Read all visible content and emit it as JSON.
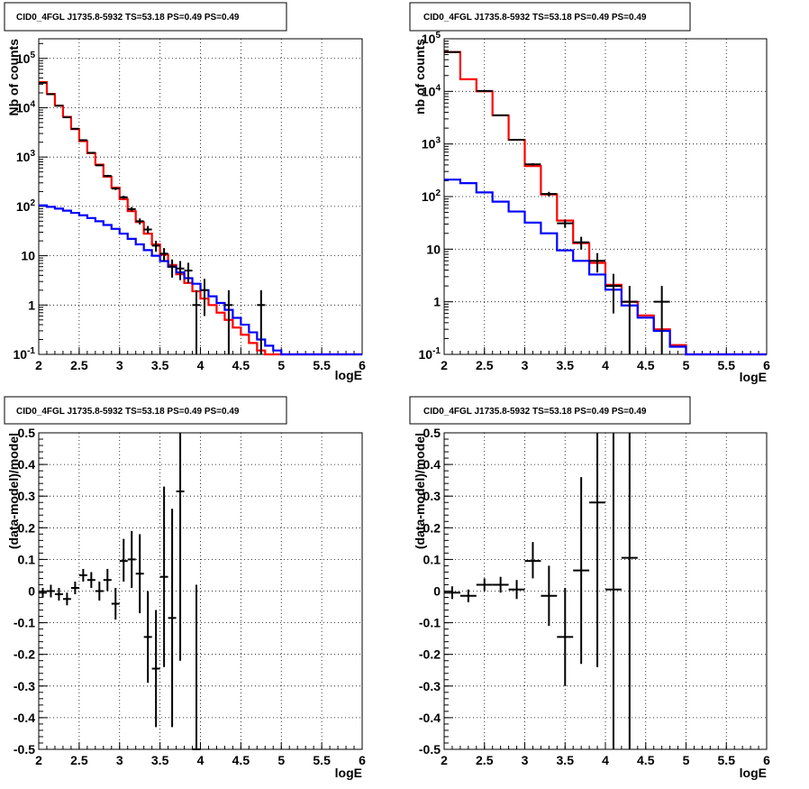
{
  "chart_data": [
    {
      "type": "line",
      "title": "CID0_4FGL J1735.8-5932 TS=53.18 PS=0.49 PS=0.49",
      "xlabel": "logE",
      "ylabel": "Nb of counts",
      "xlim": [
        2,
        6
      ],
      "ylim": [
        0.1,
        250000
      ],
      "log_y": true,
      "grid": true,
      "x_ticks": [
        "2",
        "2.5",
        "3",
        "3.5",
        "4",
        "4.5",
        "5",
        "5.5",
        "6"
      ],
      "y_ticks": [
        "10^-1",
        "1",
        "10",
        "10^2",
        "10^3",
        "10^4",
        "10^5"
      ],
      "bin_edges": [
        2.0,
        2.1,
        2.2,
        2.3,
        2.4,
        2.5,
        2.6,
        2.7,
        2.8,
        2.9,
        3.0,
        3.1,
        3.2,
        3.3,
        3.4,
        3.5,
        3.6,
        3.7,
        3.8,
        3.9,
        4.0,
        4.1,
        4.2,
        4.3,
        4.4,
        4.5,
        4.6,
        4.7,
        4.8,
        4.9,
        5.0,
        5.1,
        5.2,
        5.3,
        5.4,
        5.5,
        5.6,
        5.7,
        5.8,
        5.9,
        6.0
      ],
      "series": [
        {
          "color": "#ff0000",
          "style": "step",
          "values": [
            33000,
            19000,
            11000,
            6500,
            3700,
            2100,
            1200,
            700,
            400,
            240,
            140,
            80,
            48,
            28,
            17,
            10.5,
            6.5,
            4.2,
            2.8,
            1.9,
            1.35,
            1.0,
            0.7,
            0.5,
            0.35,
            0.25,
            0.17,
            0.12,
            0.1,
            0.1,
            0.1,
            0.1,
            0.1,
            0.1,
            0.1,
            0.1,
            0.1,
            0.1,
            0.1,
            0.1
          ]
        },
        {
          "color": "#0000ff",
          "style": "step",
          "values": [
            105,
            98,
            90,
            82,
            74,
            66,
            58,
            50,
            42,
            35,
            28,
            22,
            17,
            13,
            10,
            7.8,
            6,
            4.6,
            3.5,
            2.7,
            2.0,
            1.5,
            1.1,
            0.8,
            0.55,
            0.4,
            0.28,
            0.2,
            0.15,
            0.12,
            0.1,
            0.1,
            0.1,
            0.1,
            0.1,
            0.1,
            0.1,
            0.1,
            0.1,
            0.1
          ]
        },
        {
          "color": "#000000",
          "style": "errorbar",
          "points": [
            {
              "x": 2.05,
              "y": 32000,
              "lo": 31800,
              "hi": 32200
            },
            {
              "x": 2.15,
              "y": 18800,
              "lo": 18650,
              "hi": 18950
            },
            {
              "x": 2.25,
              "y": 11000,
              "lo": 10900,
              "hi": 11100
            },
            {
              "x": 2.35,
              "y": 6400,
              "lo": 6320,
              "hi": 6480
            },
            {
              "x": 2.45,
              "y": 3750,
              "lo": 3690,
              "hi": 3810
            },
            {
              "x": 2.55,
              "y": 2200,
              "lo": 2150,
              "hi": 2250
            },
            {
              "x": 2.65,
              "y": 1220,
              "lo": 1185,
              "hi": 1255
            },
            {
              "x": 2.75,
              "y": 680,
              "lo": 655,
              "hi": 705
            },
            {
              "x": 2.85,
              "y": 415,
              "lo": 395,
              "hi": 435
            },
            {
              "x": 2.95,
              "y": 230,
              "lo": 215,
              "hi": 245
            },
            {
              "x": 3.05,
              "y": 153,
              "lo": 141,
              "hi": 165
            },
            {
              "x": 3.15,
              "y": 88,
              "lo": 79,
              "hi": 97
            },
            {
              "x": 3.25,
              "y": 50,
              "lo": 43,
              "hi": 57
            },
            {
              "x": 3.35,
              "y": 34,
              "lo": 28,
              "hi": 40
            },
            {
              "x": 3.45,
              "y": 16,
              "lo": 12,
              "hi": 20
            },
            {
              "x": 3.55,
              "y": 11,
              "lo": 7.7,
              "hi": 14.3
            },
            {
              "x": 3.65,
              "y": 6,
              "lo": 3.6,
              "hi": 8.4
            },
            {
              "x": 3.75,
              "y": 5.5,
              "lo": 3.2,
              "hi": 7.8
            },
            {
              "x": 3.85,
              "y": 5,
              "lo": 2.8,
              "hi": 7.2
            },
            {
              "x": 3.95,
              "y": 1,
              "lo": 0.1,
              "hi": 2
            },
            {
              "x": 4.05,
              "y": 2,
              "lo": 0.6,
              "hi": 3.4
            },
            {
              "x": 4.35,
              "y": 1,
              "lo": 0.1,
              "hi": 2
            },
            {
              "x": 4.75,
              "y": 1,
              "lo": 0.1,
              "hi": 2
            }
          ]
        }
      ]
    },
    {
      "type": "line",
      "title": "CID0_4FGL J1735.8-5932 TS=53.18 PS=0.49 PS=0.49",
      "xlabel": "logE",
      "ylabel": "nb of counts",
      "xlim": [
        2,
        6
      ],
      "ylim": [
        0.1,
        100000
      ],
      "log_y": true,
      "grid": true,
      "x_ticks": [
        "2",
        "2.5",
        "3",
        "3.5",
        "4",
        "4.5",
        "5",
        "5.5",
        "6"
      ],
      "y_ticks": [
        "10^-1",
        "1",
        "10",
        "10^2",
        "10^3",
        "10^4",
        "10^5"
      ],
      "bin_edges": [
        2.0,
        2.2,
        2.4,
        2.6,
        2.8,
        3.0,
        3.2,
        3.4,
        3.6,
        3.8,
        4.0,
        4.2,
        4.4,
        4.6,
        4.8,
        5.0,
        5.2,
        5.4,
        5.6,
        5.8,
        6.0
      ],
      "series": [
        {
          "color": "#ff0000",
          "style": "step",
          "values": [
            56000,
            17000,
            10000,
            3500,
            1200,
            380,
            110,
            35,
            13,
            5.5,
            2.1,
            1.0,
            0.55,
            0.3,
            0.15,
            0.1,
            0.1,
            0.1,
            0.1,
            0.1
          ]
        },
        {
          "color": "#0000ff",
          "style": "step",
          "values": [
            210,
            180,
            120,
            80,
            52,
            32,
            20,
            9.5,
            6,
            3.3,
            1.7,
            0.85,
            0.5,
            0.28,
            0.14,
            0.1,
            0.1,
            0.1,
            0.1,
            0.1
          ]
        },
        {
          "color": "#000000",
          "style": "errorbar",
          "points": [
            {
              "x": 2.1,
              "y": 56000,
              "lo": 55800,
              "hi": 56200
            },
            {
              "x": 2.5,
              "y": 10200,
              "lo": 10100,
              "hi": 10300
            },
            {
              "x": 2.7,
              "y": 3500,
              "lo": 3440,
              "hi": 3560
            },
            {
              "x": 2.9,
              "y": 1200,
              "lo": 1165,
              "hi": 1235
            },
            {
              "x": 3.1,
              "y": 410,
              "lo": 390,
              "hi": 430
            },
            {
              "x": 3.3,
              "y": 112,
              "lo": 101,
              "hi": 123
            },
            {
              "x": 3.5,
              "y": 31,
              "lo": 25.4,
              "hi": 36.6
            },
            {
              "x": 3.7,
              "y": 13.5,
              "lo": 9.8,
              "hi": 17.2
            },
            {
              "x": 3.9,
              "y": 6,
              "lo": 3.6,
              "hi": 8.4
            },
            {
              "x": 4.1,
              "y": 2,
              "lo": 0.6,
              "hi": 3.4
            },
            {
              "x": 4.3,
              "y": 1,
              "lo": 0.1,
              "hi": 2
            },
            {
              "x": 4.7,
              "y": 1,
              "lo": 0.1,
              "hi": 2
            }
          ]
        }
      ]
    },
    {
      "type": "scatter",
      "title": "CID0_4FGL J1735.8-5932 TS=53.18 PS=0.49 PS=0.49",
      "xlabel": "logE",
      "ylabel": "(data-model)/model",
      "xlim": [
        2,
        6
      ],
      "ylim": [
        -0.5,
        0.5
      ],
      "log_y": false,
      "grid": true,
      "x_ticks": [
        "2",
        "2.5",
        "3",
        "3.5",
        "4",
        "4.5",
        "5",
        "5.5",
        "6"
      ],
      "y_ticks": [
        "-0.5",
        "-0.4",
        "-0.3",
        "-0.2",
        "-0.1",
        "0",
        "0.1",
        "0.2",
        "0.3",
        "0.4",
        "0.5"
      ],
      "series": [
        {
          "color": "#000000",
          "style": "errorbar",
          "xerr": 0.05,
          "points": [
            {
              "x": 2.05,
              "y": -0.005,
              "lo": -0.02,
              "hi": 0.01
            },
            {
              "x": 2.15,
              "y": 0.0,
              "lo": -0.02,
              "hi": 0.02
            },
            {
              "x": 2.25,
              "y": -0.01,
              "lo": -0.03,
              "hi": 0.01
            },
            {
              "x": 2.35,
              "y": -0.025,
              "lo": -0.045,
              "hi": -0.005
            },
            {
              "x": 2.45,
              "y": 0.01,
              "lo": -0.01,
              "hi": 0.03
            },
            {
              "x": 2.55,
              "y": 0.05,
              "lo": 0.03,
              "hi": 0.07
            },
            {
              "x": 2.65,
              "y": 0.035,
              "lo": 0.01,
              "hi": 0.06
            },
            {
              "x": 2.75,
              "y": 0.0,
              "lo": -0.03,
              "hi": 0.03
            },
            {
              "x": 2.85,
              "y": 0.035,
              "lo": 0.0,
              "hi": 0.07
            },
            {
              "x": 2.95,
              "y": -0.04,
              "lo": -0.09,
              "hi": 0.01
            },
            {
              "x": 3.05,
              "y": 0.095,
              "lo": 0.03,
              "hi": 0.165
            },
            {
              "x": 3.15,
              "y": 0.1,
              "lo": 0.01,
              "hi": 0.19
            },
            {
              "x": 3.25,
              "y": 0.055,
              "lo": -0.07,
              "hi": 0.18
            },
            {
              "x": 3.35,
              "y": -0.145,
              "lo": -0.29,
              "hi": 0.0
            },
            {
              "x": 3.45,
              "y": -0.245,
              "lo": -0.43,
              "hi": -0.06
            },
            {
              "x": 3.55,
              "y": 0.045,
              "lo": -0.24,
              "hi": 0.33
            },
            {
              "x": 3.65,
              "y": -0.085,
              "lo": -0.43,
              "hi": 0.26
            },
            {
              "x": 3.75,
              "y": 0.315,
              "lo": -0.22,
              "hi": 0.5
            },
            {
              "x": 3.95,
              "y": -0.5,
              "lo": -0.5,
              "hi": 0.02
            }
          ]
        }
      ]
    },
    {
      "type": "scatter",
      "title": "CID0_4FGL J1735.8-5932 TS=53.18 PS=0.49 PS=0.49",
      "xlabel": "logE",
      "ylabel": "(data-model)/model",
      "xlim": [
        2,
        6
      ],
      "ylim": [
        -0.5,
        0.5
      ],
      "log_y": false,
      "grid": true,
      "x_ticks": [
        "2",
        "2.5",
        "3",
        "3.5",
        "4",
        "4.5",
        "5",
        "5.5",
        "6"
      ],
      "y_ticks": [
        "-0.5",
        "-0.4",
        "-0.3",
        "-0.2",
        "-0.1",
        "0",
        "0.1",
        "0.2",
        "0.3",
        "0.4",
        "0.5"
      ],
      "series": [
        {
          "color": "#000000",
          "style": "errorbar",
          "xerr": 0.1,
          "points": [
            {
              "x": 2.1,
              "y": -0.005,
              "lo": -0.025,
              "hi": 0.015
            },
            {
              "x": 2.3,
              "y": -0.015,
              "lo": -0.035,
              "hi": 0.005
            },
            {
              "x": 2.5,
              "y": 0.02,
              "lo": 0.0,
              "hi": 0.04
            },
            {
              "x": 2.7,
              "y": 0.02,
              "lo": -0.005,
              "hi": 0.045
            },
            {
              "x": 2.9,
              "y": 0.005,
              "lo": -0.025,
              "hi": 0.035
            },
            {
              "x": 3.1,
              "y": 0.095,
              "lo": 0.04,
              "hi": 0.155
            },
            {
              "x": 3.3,
              "y": -0.015,
              "lo": -0.11,
              "hi": 0.08
            },
            {
              "x": 3.5,
              "y": -0.145,
              "lo": -0.3,
              "hi": 0.01
            },
            {
              "x": 3.7,
              "y": 0.065,
              "lo": -0.23,
              "hi": 0.36
            },
            {
              "x": 3.9,
              "y": 0.28,
              "lo": -0.24,
              "hi": 0.5
            },
            {
              "x": 4.1,
              "y": 0.005,
              "lo": -0.5,
              "hi": 0.5
            },
            {
              "x": 4.3,
              "y": 0.105,
              "lo": -0.5,
              "hi": 0.5
            }
          ]
        }
      ]
    }
  ]
}
